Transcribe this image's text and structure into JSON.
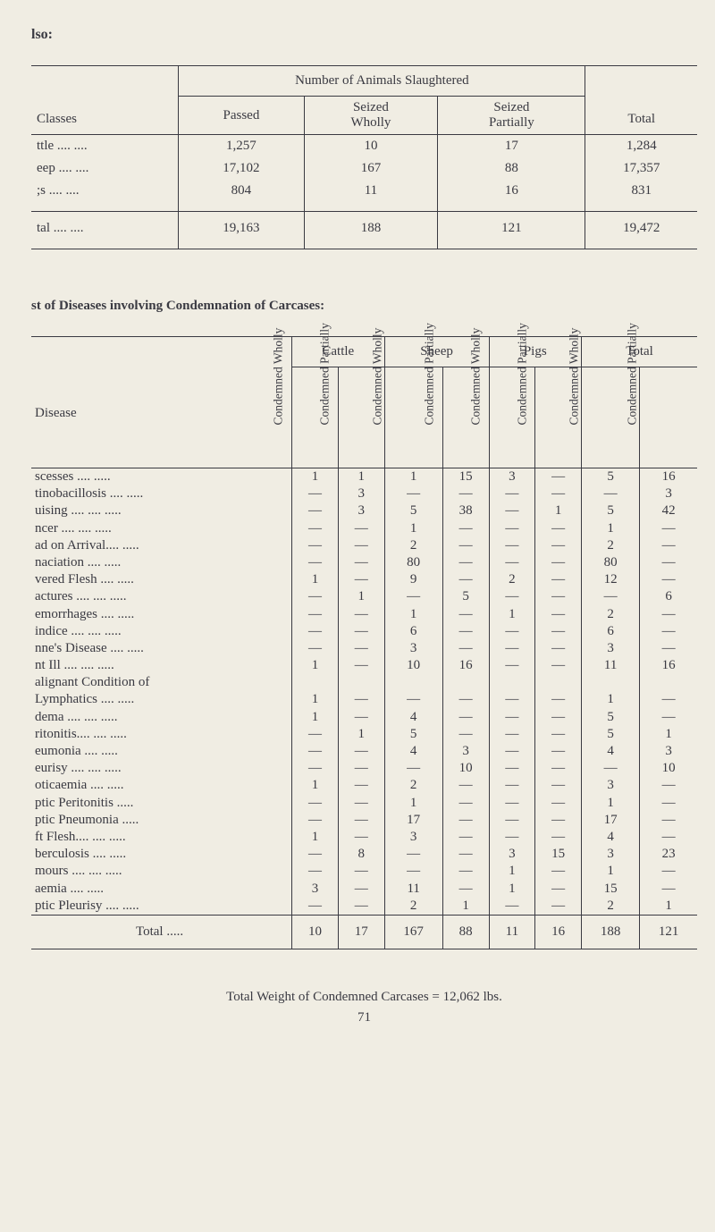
{
  "header_word": "lso:",
  "table1": {
    "super_header": "Number of Animals Slaughtered",
    "col_classes": "Classes",
    "col_passed": "Passed",
    "col_wholly": "Seized\nWholly",
    "col_partially": "Seized\nPartially",
    "col_total": "Total",
    "rows": [
      {
        "cls": "ttle    ....    ....",
        "passed": "1,257",
        "wholly": "10",
        "partially": "17",
        "total": "1,284"
      },
      {
        "cls": "eep    ....    ....",
        "passed": "17,102",
        "wholly": "167",
        "partially": "88",
        "total": "17,357"
      },
      {
        "cls": ";s      ....    ....",
        "passed": "804",
        "wholly": "11",
        "partially": "16",
        "total": "831"
      }
    ],
    "total_row": {
      "cls": "tal     ....    ....",
      "passed": "19,163",
      "wholly": "188",
      "partially": "121",
      "total": "19,472"
    }
  },
  "section_title": "st of Diseases involving Condemnation of Carcases:",
  "table2": {
    "groups": [
      "Cattle",
      "Sheep",
      "Pigs",
      "Total"
    ],
    "disease_label": "Disease",
    "vcols": [
      "Condemned Wholly",
      "Condemned Partially",
      "Condemned Wholly",
      "Condemned Partially",
      "Condemned Wholly",
      "Condemned Partially",
      "Condemned Wholly",
      "Condemned Partially"
    ],
    "rows": [
      {
        "n": "scesses          ....     .....",
        "v": [
          "1",
          "1",
          "1",
          "15",
          "3",
          "—",
          "5",
          "16"
        ]
      },
      {
        "n": "tinobacillosis ....     .....",
        "v": [
          "—",
          "3",
          "—",
          "—",
          "—",
          "—",
          "—",
          "3"
        ]
      },
      {
        "n": "uising  ....     ....     .....",
        "v": [
          "—",
          "3",
          "5",
          "38",
          "—",
          "1",
          "5",
          "42"
        ]
      },
      {
        "n": "ncer    ....     ....     .....",
        "v": [
          "—",
          "—",
          "1",
          "—",
          "—",
          "—",
          "1",
          "—"
        ]
      },
      {
        "n": "ad on Arrival....     .....",
        "v": [
          "—",
          "—",
          "2",
          "—",
          "—",
          "—",
          "2",
          "—"
        ]
      },
      {
        "n": "naciation        ....     .....",
        "v": [
          "—",
          "—",
          "80",
          "—",
          "—",
          "—",
          "80",
          "—"
        ]
      },
      {
        "n": "vered Flesh     ....     .....",
        "v": [
          "1",
          "—",
          "9",
          "—",
          "2",
          "—",
          "12",
          "—"
        ]
      },
      {
        "n": "actures ....     ....     .....",
        "v": [
          "—",
          "1",
          "—",
          "5",
          "—",
          "—",
          "—",
          "6"
        ]
      },
      {
        "n": "emorrhages    ....     .....",
        "v": [
          "—",
          "—",
          "1",
          "—",
          "1",
          "—",
          "2",
          "—"
        ]
      },
      {
        "n": "indice  ....     ....     .....",
        "v": [
          "—",
          "—",
          "6",
          "—",
          "—",
          "—",
          "6",
          "—"
        ]
      },
      {
        "n": "nne's Disease ....     .....",
        "v": [
          "—",
          "—",
          "3",
          "—",
          "—",
          "—",
          "3",
          "—"
        ]
      },
      {
        "n": "nt Ill   ....     ....     .....",
        "v": [
          "1",
          "—",
          "10",
          "16",
          "—",
          "—",
          "11",
          "16"
        ]
      },
      {
        "n": "alignant Condition of",
        "v": [
          "",
          "",
          "",
          "",
          "",
          "",
          "",
          ""
        ]
      },
      {
        "n": "Lymphatics     ....     .....",
        "v": [
          "1",
          "—",
          "—",
          "—",
          "—",
          "—",
          "1",
          "—"
        ]
      },
      {
        "n": "dema    ....     ....     .....",
        "v": [
          "1",
          "—",
          "4",
          "—",
          "—",
          "—",
          "5",
          "—"
        ]
      },
      {
        "n": "ritonitis....     ....     .....",
        "v": [
          "—",
          "1",
          "5",
          "—",
          "—",
          "—",
          "5",
          "1"
        ]
      },
      {
        "n": "eumonia         ....     .....",
        "v": [
          "—",
          "—",
          "4",
          "3",
          "—",
          "—",
          "4",
          "3"
        ]
      },
      {
        "n": "eurisy  ....     ....     .....",
        "v": [
          "—",
          "—",
          "—",
          "10",
          "—",
          "—",
          "—",
          "10"
        ]
      },
      {
        "n": "oticaemia        ....     .....",
        "v": [
          "1",
          "—",
          "2",
          "—",
          "—",
          "—",
          "3",
          "—"
        ]
      },
      {
        "n": "ptic Peritonitis        .....",
        "v": [
          "—",
          "—",
          "1",
          "—",
          "—",
          "—",
          "1",
          "—"
        ]
      },
      {
        "n": "ptic Pneumonia       .....",
        "v": [
          "—",
          "—",
          "17",
          "—",
          "—",
          "—",
          "17",
          "—"
        ]
      },
      {
        "n": "ft Flesh....     ....     .....",
        "v": [
          "1",
          "—",
          "3",
          "—",
          "—",
          "—",
          "4",
          "—"
        ]
      },
      {
        "n": "berculosis       ....     .....",
        "v": [
          "—",
          "8",
          "—",
          "—",
          "3",
          "15",
          "3",
          "23"
        ]
      },
      {
        "n": "mours  ....     ....     .....",
        "v": [
          "—",
          "—",
          "—",
          "—",
          "1",
          "—",
          "1",
          "—"
        ]
      },
      {
        "n": "aemia           ....     .....",
        "v": [
          "3",
          "—",
          "11",
          "—",
          "1",
          "—",
          "15",
          "—"
        ]
      },
      {
        "n": "ptic Pleurisy    ....     .....",
        "v": [
          "—",
          "—",
          "2",
          "1",
          "—",
          "—",
          "2",
          "1"
        ]
      }
    ],
    "total_label": "Total     .....",
    "total_values": [
      "10",
      "17",
      "167",
      "88",
      "11",
      "16",
      "188",
      "121"
    ]
  },
  "footer": "Total Weight of Condemned Carcases = 12,062 lbs.",
  "page_num": "71"
}
